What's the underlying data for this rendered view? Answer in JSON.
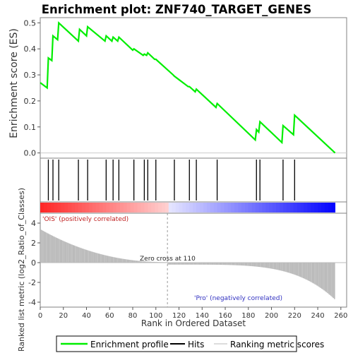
{
  "chart_data": {
    "type": "line",
    "title": "Enrichment plot: ZNF740_TARGET_GENES",
    "ylabel_top": "Enrichment score (ES)",
    "ylabel_bottom": "Ranked list metric (log2_Ratio_of_Classes)",
    "xlabel": "Rank in Ordered Dataset",
    "xlim": [
      0,
      265
    ],
    "ylim_es": [
      -0.02,
      0.52
    ],
    "ylim_metric": [
      -4.5,
      5
    ],
    "x_ticks": [
      0,
      20,
      40,
      60,
      80,
      100,
      120,
      140,
      160,
      180,
      200,
      220,
      240,
      260
    ],
    "es_ticks": [
      0.0,
      0.1,
      0.2,
      0.3,
      0.4,
      0.5
    ],
    "metric_ticks": [
      -4,
      -2,
      0,
      2,
      4
    ],
    "es_curve": {
      "x": [
        0,
        6,
        7,
        10,
        11,
        15,
        16,
        33,
        34,
        40,
        41,
        56,
        57,
        62,
        63,
        67,
        68,
        80,
        81,
        89,
        90,
        92,
        93,
        99,
        100,
        115,
        116,
        128,
        129,
        134,
        135,
        152,
        153,
        186,
        187,
        189,
        190,
        209,
        210,
        219,
        220,
        255
      ],
      "y": [
        0.27,
        0.25,
        0.365,
        0.355,
        0.45,
        0.435,
        0.5,
        0.43,
        0.475,
        0.45,
        0.485,
        0.43,
        0.45,
        0.43,
        0.445,
        0.43,
        0.445,
        0.395,
        0.4,
        0.375,
        0.38,
        0.375,
        0.385,
        0.36,
        0.36,
        0.3,
        0.295,
        0.255,
        0.255,
        0.235,
        0.245,
        0.175,
        0.19,
        0.05,
        0.09,
        0.08,
        0.12,
        0.04,
        0.105,
        0.07,
        0.145,
        0.0
      ]
    },
    "hits": [
      7,
      11,
      16,
      33,
      41,
      57,
      63,
      68,
      81,
      90,
      93,
      100,
      116,
      129,
      135,
      153,
      187,
      190,
      210,
      220
    ],
    "zero_cross": 110,
    "n_genes": 255,
    "pos_label": "'OIS' (positively correlated)",
    "neg_label": "'Pro' (negatively correlated)",
    "zero_cross_label": "Zero cross at 110",
    "legend": [
      "Enrichment profile",
      "Hits",
      "Ranking metric scores"
    ],
    "colors": {
      "es_line": "#00ee00",
      "hits": "#000000",
      "metric": "#bbbbbb",
      "zero_line": "#bbbbbb",
      "pos": "#ff0000",
      "neg": "#0000ff"
    }
  }
}
